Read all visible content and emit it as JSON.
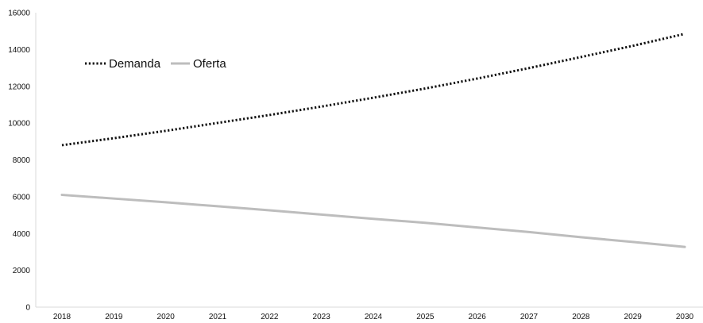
{
  "chart_data": {
    "type": "line",
    "title": "",
    "xlabel": "",
    "ylabel": "",
    "categories": [
      "2018",
      "2019",
      "2020",
      "2021",
      "2022",
      "2023",
      "2024",
      "2025",
      "2026",
      "2027",
      "2028",
      "2029",
      "2030"
    ],
    "ylim": [
      0,
      16000
    ],
    "yticks": [
      0,
      2000,
      4000,
      6000,
      8000,
      10000,
      12000,
      14000,
      16000
    ],
    "grid": false,
    "legend_position": "top-left",
    "series": [
      {
        "name": "Demanda",
        "color": "#111111",
        "line_style": "dotted",
        "values": [
          8800,
          9180,
          9580,
          10010,
          10440,
          10900,
          11380,
          11880,
          12420,
          12990,
          13590,
          14200,
          14850
        ]
      },
      {
        "name": "Oferta",
        "color": "#bdbdbd",
        "line_style": "solid",
        "values": [
          6100,
          5900,
          5700,
          5480,
          5260,
          5030,
          4800,
          4580,
          4330,
          4080,
          3800,
          3540,
          3270
        ]
      }
    ]
  }
}
